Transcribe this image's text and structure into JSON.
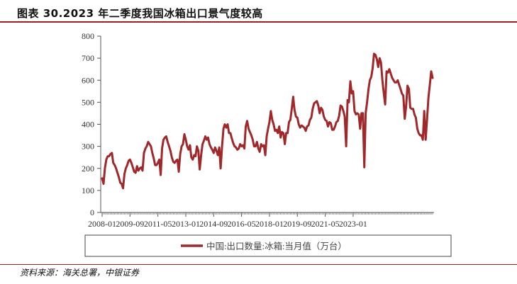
{
  "page": {
    "title": "图表 30.2023 年二季度我国冰箱出口景气度较高",
    "source": "资料来源：海关总署，中银证券"
  },
  "colors": {
    "accent": "#a01e22",
    "series": "#a0282b",
    "axis": "#555555"
  },
  "chart_data": {
    "type": "line",
    "title": "图表 30.2023 年二季度我国冰箱出口景气度较高",
    "xlabel": "",
    "ylabel": "",
    "ylim": [
      0,
      800
    ],
    "yticks": [
      0,
      100,
      200,
      300,
      400,
      500,
      600,
      700,
      800
    ],
    "xtick_labels": [
      "2008-01",
      "2009-09",
      "2011-05",
      "2013-01",
      "2014-09",
      "2016-05",
      "2018-01",
      "2019-09",
      "2021-05",
      "2023-01"
    ],
    "legend_position": "bottom",
    "grid": false,
    "series": [
      {
        "name": "中国:出口数量:冰箱:当月值（万台）",
        "x_start": "2008-01",
        "values": [
          155,
          130,
          200,
          240,
          255,
          255,
          265,
          270,
          225,
          215,
          200,
          180,
          160,
          135,
          130,
          110,
          175,
          200,
          215,
          235,
          240,
          225,
          205,
          185,
          180,
          210,
          190,
          200,
          205,
          190,
          270,
          290,
          300,
          320,
          310,
          300,
          270,
          245,
          215,
          215,
          225,
          240,
          170,
          290,
          330,
          340,
          345,
          320,
          300,
          280,
          250,
          230,
          225,
          235,
          240,
          185,
          265,
          300,
          310,
          355,
          330,
          300,
          285,
          305,
          250,
          240,
          260,
          255,
          300,
          280,
          195,
          260,
          310,
          325,
          345,
          330,
          340,
          310,
          295,
          285,
          270,
          295,
          280,
          260,
          295,
          200,
          300,
          380,
          400,
          385,
          400,
          360,
          360,
          335,
          315,
          300,
          295,
          285,
          290,
          310,
          300,
          305,
          290,
          390,
          415,
          380,
          365,
          350,
          330,
          300,
          300,
          320,
          290,
          275,
          310,
          300,
          305,
          260,
          345,
          380,
          410,
          460,
          420,
          400,
          370,
          375,
          360,
          390,
          340,
          365,
          360,
          310,
          360,
          360,
          410,
          420,
          470,
          525,
          465,
          435,
          430,
          400,
          385,
          395,
          390,
          385,
          370,
          390,
          395,
          420,
          430,
          470,
          495,
          500,
          505,
          485,
          450,
          475,
          465,
          435,
          420,
          415,
          390,
          410,
          405,
          375,
          375,
          390,
          410,
          415,
          440,
          485,
          480,
          460,
          435,
          300,
          510,
          500,
          595,
          540,
          550,
          460,
          445,
          450,
          445,
          380,
          450,
          450,
          205,
          450,
          500,
          560,
          600,
          615,
          655,
          720,
          715,
          695,
          660,
          700,
          680,
          600,
          540,
          490,
          640,
          635,
          650,
          630,
          610,
          600,
          590,
          590,
          600,
          580,
          560,
          540,
          530,
          425,
          480,
          575,
          560,
          475,
          470,
          470,
          445,
          430,
          380,
          360,
          350,
          350,
          330,
          460,
          330,
          420,
          520,
          580,
          640,
          610
        ]
      }
    ]
  }
}
